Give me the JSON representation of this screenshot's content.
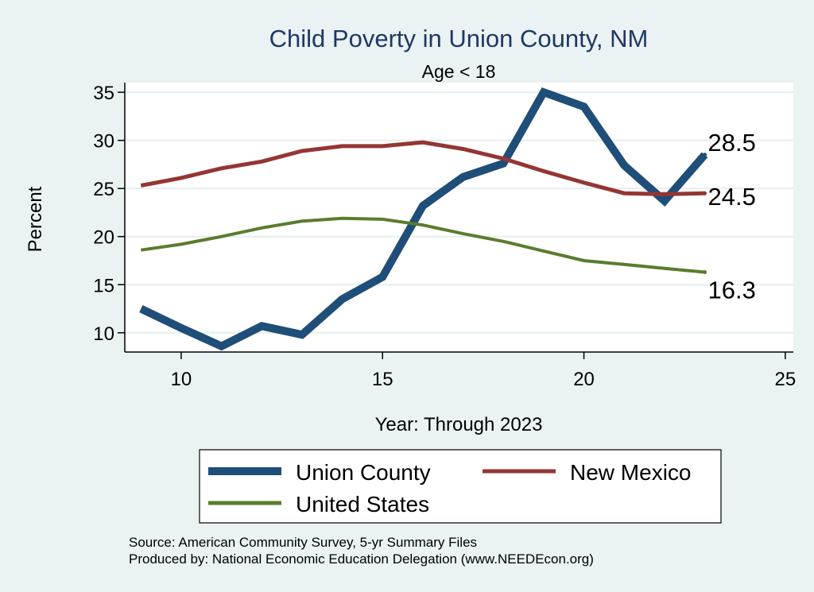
{
  "chart_data": {
    "type": "line",
    "title": "Child Poverty in Union County, NM",
    "subtitle": "Age < 18",
    "xlabel": "Year: Through 2023",
    "ylabel": "Percent",
    "xlim": [
      8.6,
      25.2
    ],
    "ylim": [
      8,
      36
    ],
    "xticks": [
      "10",
      "15",
      "20",
      "25"
    ],
    "yticks": [
      "10",
      "15",
      "20",
      "25",
      "30",
      "35"
    ],
    "grid": true,
    "legend_position": "bottom",
    "series": [
      {
        "name": "Union County",
        "color": "#1f4e79",
        "x": [
          9,
          10,
          11,
          12,
          13,
          14,
          15,
          16,
          17,
          18,
          19,
          20,
          21,
          22,
          23
        ],
        "y": [
          12.5,
          10.5,
          8.6,
          10.7,
          9.8,
          13.5,
          15.8,
          23.2,
          26.2,
          27.6,
          35.0,
          33.5,
          27.4,
          23.7,
          28.5
        ],
        "end_label": "28.5"
      },
      {
        "name": "New Mexico",
        "color": "#943634",
        "x": [
          9,
          10,
          11,
          12,
          13,
          14,
          15,
          16,
          17,
          18,
          19,
          20,
          21,
          22,
          23
        ],
        "y": [
          25.3,
          26.1,
          27.1,
          27.8,
          28.9,
          29.4,
          29.4,
          29.8,
          29.1,
          28.1,
          26.8,
          25.6,
          24.5,
          24.4,
          24.5
        ],
        "end_label": "24.5"
      },
      {
        "name": "United States",
        "color": "#5a7c2e",
        "x": [
          9,
          10,
          11,
          12,
          13,
          14,
          15,
          16,
          17,
          18,
          19,
          20,
          21,
          22,
          23
        ],
        "y": [
          18.6,
          19.2,
          20.0,
          20.9,
          21.6,
          21.9,
          21.8,
          21.2,
          20.3,
          19.5,
          18.5,
          17.5,
          17.1,
          16.7,
          16.3
        ],
        "end_label": "16.3"
      }
    ]
  },
  "notes": {
    "source": "Source: American Community Survey, 5-yr Summary Files",
    "produced": "Produced by: National Economic Education Delegation (www.NEEDEcon.org)"
  }
}
